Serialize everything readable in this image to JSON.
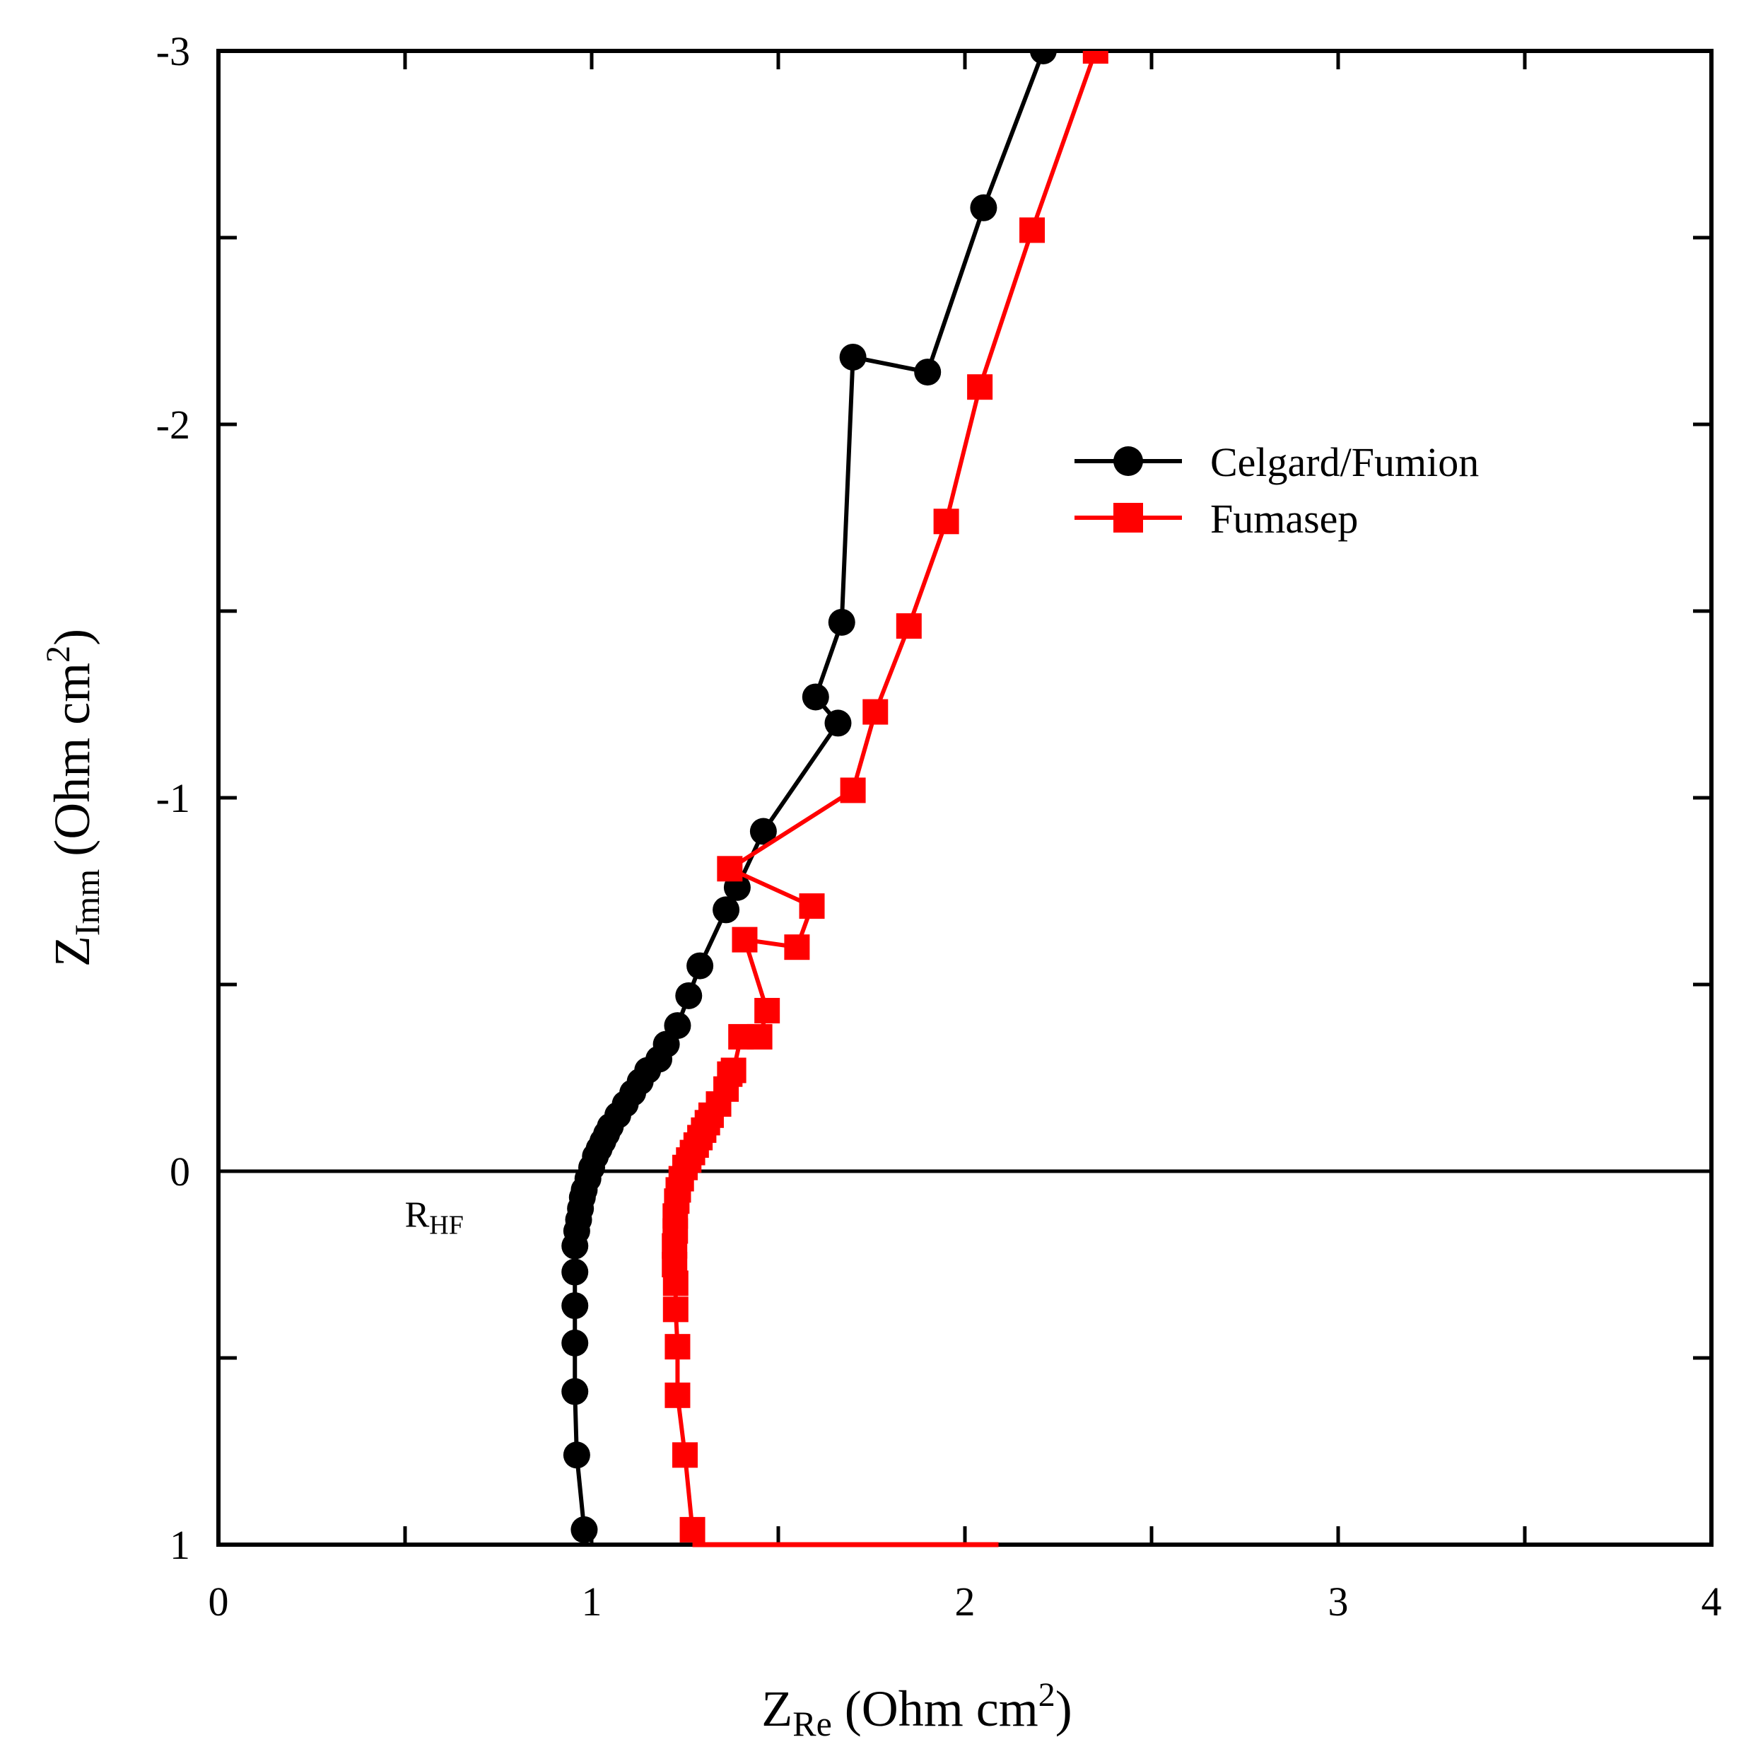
{
  "chart_data": {
    "type": "line",
    "title": "",
    "xlabel": {
      "main": "Z",
      "sub": "Re",
      "rest": " (Ohm cm",
      "sup": "2",
      "close": ")"
    },
    "ylabel": {
      "main": "Z",
      "sub": "Imm",
      "rest": " (Ohm cm",
      "sup": "2",
      "close": ")"
    },
    "xlim": [
      0,
      4
    ],
    "ylim": [
      1,
      -3
    ],
    "x_ticks": [
      "0",
      "1",
      "2",
      "3",
      "4"
    ],
    "y_ticks": [
      "-3",
      "-2",
      "-1",
      "0",
      "1"
    ],
    "legend_position": "right, upper-middle",
    "annotation": {
      "main": "R",
      "sub": "HF",
      "x": 0.96,
      "y": 0.13
    },
    "zero_line": 0,
    "series": [
      {
        "name": "Celgard/Fumion",
        "color": "#000000",
        "marker": "circle",
        "x": [
          0.98,
          0.96,
          0.955,
          0.955,
          0.955,
          0.955,
          0.955,
          0.96,
          0.965,
          0.97,
          0.975,
          0.98,
          0.99,
          1.0,
          1.01,
          1.02,
          1.03,
          1.04,
          1.05,
          1.07,
          1.09,
          1.11,
          1.13,
          1.15,
          1.18,
          1.2,
          1.23,
          1.26,
          1.29,
          1.36,
          1.39,
          1.46,
          1.66,
          1.6,
          1.67,
          1.7,
          1.9,
          2.05,
          2.21
        ],
        "y": [
          0.96,
          0.76,
          0.59,
          0.46,
          0.36,
          0.27,
          0.2,
          0.16,
          0.13,
          0.1,
          0.07,
          0.05,
          0.02,
          -0.01,
          -0.04,
          -0.06,
          -0.08,
          -0.1,
          -0.12,
          -0.15,
          -0.18,
          -0.21,
          -0.24,
          -0.27,
          -0.3,
          -0.34,
          -0.39,
          -0.47,
          -0.55,
          -0.7,
          -0.76,
          -0.91,
          -1.2,
          -1.27,
          -1.47,
          -2.18,
          -2.14,
          -2.58,
          -3.0
        ]
      },
      {
        "name": "Fumasep",
        "color": "#ff0000",
        "marker": "square",
        "x": [
          1.27,
          1.25,
          1.23,
          1.23,
          1.225,
          1.225,
          1.222,
          1.222,
          1.224,
          1.224,
          1.228,
          1.232,
          1.24,
          1.25,
          1.26,
          1.27,
          1.28,
          1.29,
          1.3,
          1.31,
          1.32,
          1.34,
          1.36,
          1.37,
          1.38,
          1.4,
          1.45,
          1.47,
          1.41,
          1.55,
          1.59,
          1.37,
          1.7,
          1.76,
          1.85,
          1.95,
          2.04,
          2.18,
          2.35
        ],
        "y": [
          0.96,
          0.76,
          0.6,
          0.47,
          0.37,
          0.3,
          0.25,
          0.2,
          0.16,
          0.12,
          0.08,
          0.05,
          0.02,
          -0.01,
          -0.03,
          -0.05,
          -0.07,
          -0.09,
          -0.11,
          -0.13,
          -0.15,
          -0.18,
          -0.22,
          -0.26,
          -0.27,
          -0.36,
          -0.36,
          -0.43,
          -0.62,
          -0.6,
          -0.71,
          -0.81,
          -1.02,
          -1.23,
          -1.46,
          -1.74,
          -2.1,
          -2.52,
          -3.0
        ]
      }
    ]
  }
}
